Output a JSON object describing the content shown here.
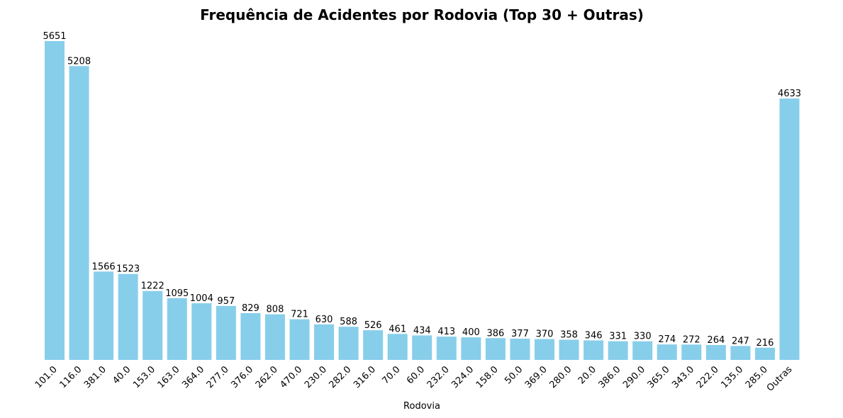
{
  "chart_data": {
    "type": "bar",
    "title": "Frequência de Acidentes por Rodovia (Top 30 + Outras)",
    "xlabel": "Rodovia",
    "ylabel": "",
    "categories": [
      "101.0",
      "116.0",
      "381.0",
      "40.0",
      "153.0",
      "163.0",
      "364.0",
      "277.0",
      "376.0",
      "262.0",
      "470.0",
      "230.0",
      "282.0",
      "316.0",
      "70.0",
      "60.0",
      "232.0",
      "324.0",
      "158.0",
      "50.0",
      "369.0",
      "280.0",
      "20.0",
      "386.0",
      "290.0",
      "365.0",
      "343.0",
      "222.0",
      "135.0",
      "285.0",
      "Outras"
    ],
    "values": [
      5651,
      5208,
      1566,
      1523,
      1222,
      1095,
      1004,
      957,
      829,
      808,
      721,
      630,
      588,
      526,
      461,
      434,
      413,
      400,
      386,
      377,
      370,
      358,
      346,
      331,
      330,
      274,
      272,
      264,
      247,
      216,
      4633
    ],
    "value_labels": [
      "5651",
      "5208",
      "1566",
      "1523",
      "1222",
      "1095",
      "1004",
      "957",
      "829",
      "808",
      "721",
      "630",
      "588",
      "526",
      "461",
      "434",
      "413",
      "400",
      "386",
      "377",
      "370",
      "358",
      "346",
      "331",
      "330",
      "274",
      "272",
      "264",
      "247",
      "216",
      "4633"
    ],
    "ylim": [
      0,
      5651
    ],
    "bar_color": "#87ceeb",
    "grid": false,
    "y_axis_visible": false
  }
}
